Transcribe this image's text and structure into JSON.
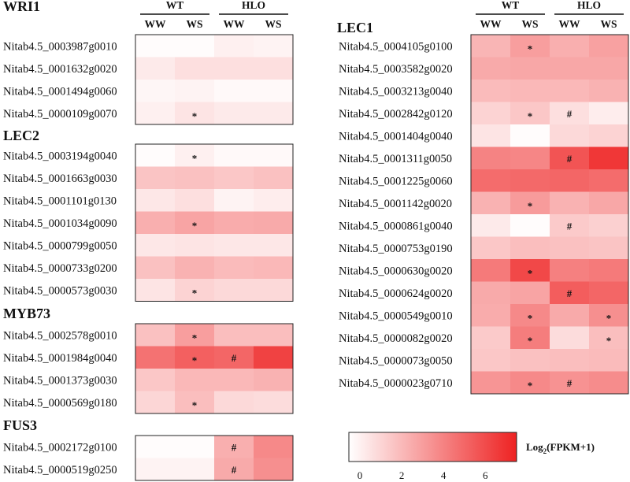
{
  "chart_data": {
    "type": "heatmap",
    "groups": [
      {
        "name": "WT"
      },
      {
        "name": "HLO"
      }
    ],
    "columns": [
      "WW",
      "WS",
      "WW",
      "WS"
    ],
    "panels": [
      {
        "title": "WRI1",
        "rows": [
          {
            "gene": "Nitab4.5_0003987g0010",
            "values": [
              0.1,
              0.1,
              0.5,
              0.4
            ],
            "marks": [
              "",
              "",
              "",
              ""
            ]
          },
          {
            "gene": "Nitab4.5_0001632g0020",
            "values": [
              0.7,
              1.1,
              1.1,
              1.1
            ],
            "marks": [
              "",
              "",
              "",
              ""
            ]
          },
          {
            "gene": "Nitab4.5_0001494g0060",
            "values": [
              0.3,
              0.4,
              0.2,
              0.2
            ],
            "marks": [
              "",
              "",
              "",
              ""
            ]
          },
          {
            "gene": "Nitab4.5_0000109g0070",
            "values": [
              0.5,
              0.9,
              0.7,
              0.7
            ],
            "marks": [
              "",
              "*",
              "",
              ""
            ]
          }
        ]
      },
      {
        "title": "LEC2",
        "rows": [
          {
            "gene": "Nitab4.5_0003194g0040",
            "values": [
              0.1,
              0.5,
              0.2,
              0.2
            ],
            "marks": [
              "",
              "*",
              "",
              ""
            ]
          },
          {
            "gene": "Nitab4.5_0001663g0030",
            "values": [
              2.0,
              2.1,
              1.9,
              2.1
            ],
            "marks": [
              "",
              "",
              "",
              ""
            ]
          },
          {
            "gene": "Nitab4.5_0001101g0130",
            "values": [
              0.8,
              1.1,
              0.4,
              0.6
            ],
            "marks": [
              "",
              "",
              "",
              ""
            ]
          },
          {
            "gene": "Nitab4.5_0001034g0090",
            "values": [
              2.7,
              3.1,
              2.8,
              2.9
            ],
            "marks": [
              "",
              "*",
              "",
              ""
            ]
          },
          {
            "gene": "Nitab4.5_0000799g0050",
            "values": [
              0.8,
              0.9,
              0.8,
              0.8
            ],
            "marks": [
              "",
              "",
              "",
              ""
            ]
          },
          {
            "gene": "Nitab4.5_0000733g0200",
            "values": [
              2.1,
              2.6,
              2.3,
              2.4
            ],
            "marks": [
              "",
              "",
              "",
              ""
            ]
          },
          {
            "gene": "Nitab4.5_0000573g0030",
            "values": [
              0.9,
              1.5,
              1.3,
              1.3
            ],
            "marks": [
              "",
              "*",
              "",
              ""
            ]
          }
        ]
      },
      {
        "title": "MYB73",
        "rows": [
          {
            "gene": "Nitab4.5_0002578g0010",
            "values": [
              2.1,
              3.3,
              2.2,
              2.2
            ],
            "marks": [
              "",
              "*",
              "",
              ""
            ]
          },
          {
            "gene": "Nitab4.5_0001984g0040",
            "values": [
              4.8,
              5.4,
              5.2,
              6.4
            ],
            "marks": [
              "",
              "*",
              "#",
              ""
            ]
          },
          {
            "gene": "Nitab4.5_0001373g0030",
            "values": [
              1.9,
              2.4,
              2.4,
              2.6
            ],
            "marks": [
              "",
              "",
              "",
              ""
            ]
          },
          {
            "gene": "Nitab4.5_0000569g0180",
            "values": [
              1.4,
              2.2,
              1.3,
              1.2
            ],
            "marks": [
              "",
              "*",
              "",
              ""
            ]
          }
        ]
      },
      {
        "title": "FUS3",
        "rows": [
          {
            "gene": "Nitab4.5_0002172g0100",
            "values": [
              0.1,
              0.1,
              2.7,
              4.0
            ],
            "marks": [
              "",
              "",
              "#",
              ""
            ]
          },
          {
            "gene": "Nitab4.5_0000519g0250",
            "values": [
              0.4,
              0.4,
              2.9,
              3.8
            ],
            "marks": [
              "",
              "",
              "#",
              ""
            ]
          }
        ]
      },
      {
        "title": "LEC1",
        "rows": [
          {
            "gene": "Nitab4.5_0004105g0100",
            "values": [
              2.5,
              3.3,
              2.7,
              3.2
            ],
            "marks": [
              "",
              "*",
              "",
              ""
            ]
          },
          {
            "gene": "Nitab4.5_0003582g0020",
            "values": [
              2.9,
              3.0,
              3.0,
              3.0
            ],
            "marks": [
              "",
              "",
              "",
              ""
            ]
          },
          {
            "gene": "Nitab4.5_0003213g0040",
            "values": [
              2.3,
              2.4,
              2.4,
              2.6
            ],
            "marks": [
              "",
              "",
              "",
              ""
            ]
          },
          {
            "gene": "Nitab4.5_0002842g0120",
            "values": [
              1.5,
              1.9,
              1.1,
              0.6
            ],
            "marks": [
              "",
              "*",
              "#",
              ""
            ]
          },
          {
            "gene": "Nitab4.5_0001404g0040",
            "values": [
              0.9,
              0.1,
              1.3,
              1.5
            ],
            "marks": [
              "",
              "",
              "",
              ""
            ]
          },
          {
            "gene": "Nitab4.5_0001311g0050",
            "values": [
              4.2,
              4.1,
              5.8,
              6.8
            ],
            "marks": [
              "",
              "",
              "#",
              ""
            ]
          },
          {
            "gene": "Nitab4.5_0001225g0060",
            "values": [
              5.0,
              5.1,
              5.2,
              5.0
            ],
            "marks": [
              "",
              "",
              "",
              ""
            ]
          },
          {
            "gene": "Nitab4.5_0001142g0020",
            "values": [
              2.6,
              3.4,
              2.6,
              3.0
            ],
            "marks": [
              "",
              "*",
              "",
              ""
            ]
          },
          {
            "gene": "Nitab4.5_0000861g0040",
            "values": [
              0.7,
              0.1,
              1.8,
              1.6
            ],
            "marks": [
              "",
              "",
              "#",
              ""
            ]
          },
          {
            "gene": "Nitab4.5_0000753g0190",
            "values": [
              1.9,
              2.2,
              2.1,
              2.0
            ],
            "marks": [
              "",
              "",
              "",
              ""
            ]
          },
          {
            "gene": "Nitab4.5_0000630g0020",
            "values": [
              4.5,
              6.2,
              4.3,
              4.5
            ],
            "marks": [
              "",
              "*",
              "",
              ""
            ]
          },
          {
            "gene": "Nitab4.5_0000624g0020",
            "values": [
              2.9,
              3.1,
              5.5,
              5.2
            ],
            "marks": [
              "",
              "",
              "#",
              ""
            ]
          },
          {
            "gene": "Nitab4.5_0000549g0010",
            "values": [
              2.8,
              4.0,
              2.9,
              3.8
            ],
            "marks": [
              "",
              "*",
              "",
              "*"
            ]
          },
          {
            "gene": "Nitab4.5_0000082g0020",
            "values": [
              1.8,
              4.4,
              1.2,
              2.2
            ],
            "marks": [
              "",
              "*",
              "",
              "*"
            ]
          },
          {
            "gene": "Nitab4.5_0000073g0050",
            "values": [
              1.9,
              2.1,
              2.2,
              2.3
            ],
            "marks": [
              "",
              "",
              "",
              ""
            ]
          },
          {
            "gene": "Nitab4.5_0000023g0710",
            "values": [
              3.6,
              4.0,
              3.7,
              3.9
            ],
            "marks": [
              "",
              "*",
              "#",
              ""
            ]
          }
        ]
      }
    ],
    "legend": {
      "label": "Log",
      "label_sub": "2",
      "label_rest": "(FPKM+1)",
      "ticks": [
        0,
        2,
        4,
        6
      ],
      "range": [
        0,
        7.5
      ]
    },
    "colors": {
      "low": "#ffffff",
      "high": "#ee2222"
    }
  }
}
